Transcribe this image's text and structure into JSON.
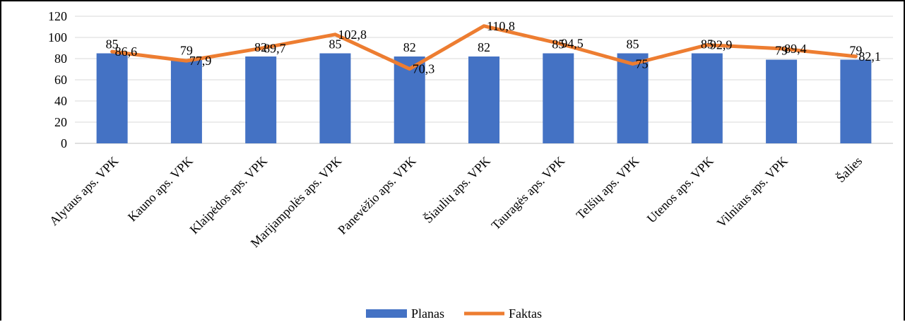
{
  "chart_data": {
    "type": "bar",
    "title": "",
    "xlabel": "",
    "ylabel": "",
    "ylim": [
      0,
      120
    ],
    "yticks": [
      0,
      20,
      40,
      60,
      80,
      100,
      120
    ],
    "grid": true,
    "legend_position": "bottom",
    "categories": [
      "Alytaus aps. VPK",
      "Kauno aps. VPK",
      "Klaipėdos aps. VPK",
      "Marijampolės aps. VPK",
      "Panevėžio aps. VPK",
      "Šiaulių aps. VPK",
      "Tauragės aps. VPK",
      "Telšių aps. VPK",
      "Utenos aps. VPK",
      "Vilniaus aps. VPK",
      "Šalies"
    ],
    "series": [
      {
        "name": "Planas",
        "kind": "bar",
        "color": "#4472C4",
        "values": [
          85,
          79,
          82,
          85,
          82,
          82,
          85,
          85,
          85,
          79,
          79
        ],
        "labels": [
          "85",
          "79",
          "82",
          "85",
          "82",
          "82",
          "85",
          "85",
          "85",
          "79",
          "79"
        ]
      },
      {
        "name": "Faktas",
        "kind": "line",
        "color": "#ED7D31",
        "values": [
          86.6,
          77.9,
          89.7,
          102.8,
          70.3,
          110.8,
          94.5,
          75,
          92.9,
          89.4,
          82.1
        ],
        "labels": [
          "86,6",
          "77,9",
          "89,7",
          "102,8",
          "70,3",
          "110,8",
          "94,5",
          "75",
          "92,9",
          "89,4",
          "82,1"
        ]
      }
    ]
  }
}
